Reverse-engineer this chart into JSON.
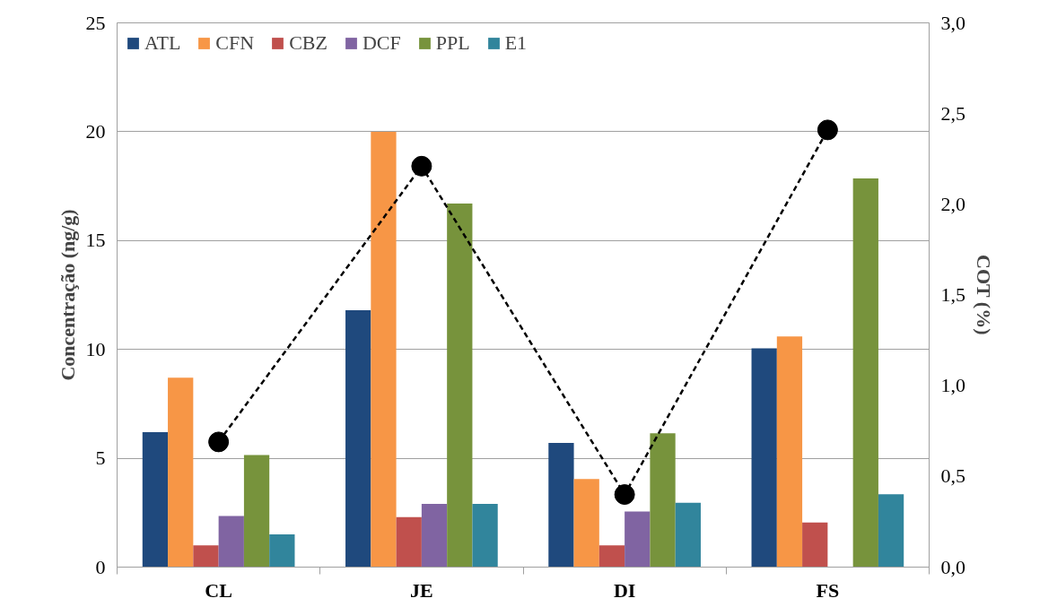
{
  "chart_data": {
    "type": "bar",
    "categories": [
      "CL",
      "JE",
      "DI",
      "FS"
    ],
    "ylabel": "Concentração (ng/g)",
    "y2label": "COT (%)",
    "ylim": [
      0,
      25
    ],
    "yticks": [
      0,
      5,
      10,
      15,
      20,
      25
    ],
    "y2lim": [
      0,
      3
    ],
    "y2ticks": [
      {
        "value": 0,
        "label": "0,0"
      },
      {
        "value": 0.5,
        "label": "0,5"
      },
      {
        "value": 1,
        "label": "1,0"
      },
      {
        "value": 1.5,
        "label": "1,5"
      },
      {
        "value": 2,
        "label": "2,0"
      },
      {
        "value": 2.5,
        "label": "2,5"
      },
      {
        "value": 3,
        "label": "3,0"
      }
    ],
    "grid": "y",
    "legend": "top left",
    "series": [
      {
        "name": "ATL",
        "color": "#1f497d",
        "values": [
          6.2,
          11.8,
          5.7,
          10.05
        ]
      },
      {
        "name": "CFN",
        "color": "#f79646",
        "values": [
          8.7,
          20.0,
          4.05,
          10.6
        ]
      },
      {
        "name": "CBZ",
        "color": "#c0504d",
        "values": [
          1.0,
          2.3,
          1.0,
          2.05
        ]
      },
      {
        "name": "DCF",
        "color": "#8064a2",
        "values": [
          2.35,
          2.9,
          2.55,
          null
        ]
      },
      {
        "name": "PPL",
        "color": "#77933c",
        "values": [
          5.15,
          16.7,
          6.15,
          17.85
        ]
      },
      {
        "name": "E1",
        "color": "#31859c",
        "values": [
          1.5,
          2.9,
          2.95,
          3.35
        ]
      },
      {
        "type": "line",
        "axis": "y2",
        "color": "#000000",
        "marker": "circle",
        "line_style": "dashed",
        "values": [
          0.69,
          2.21,
          0.4,
          2.41
        ]
      }
    ]
  }
}
